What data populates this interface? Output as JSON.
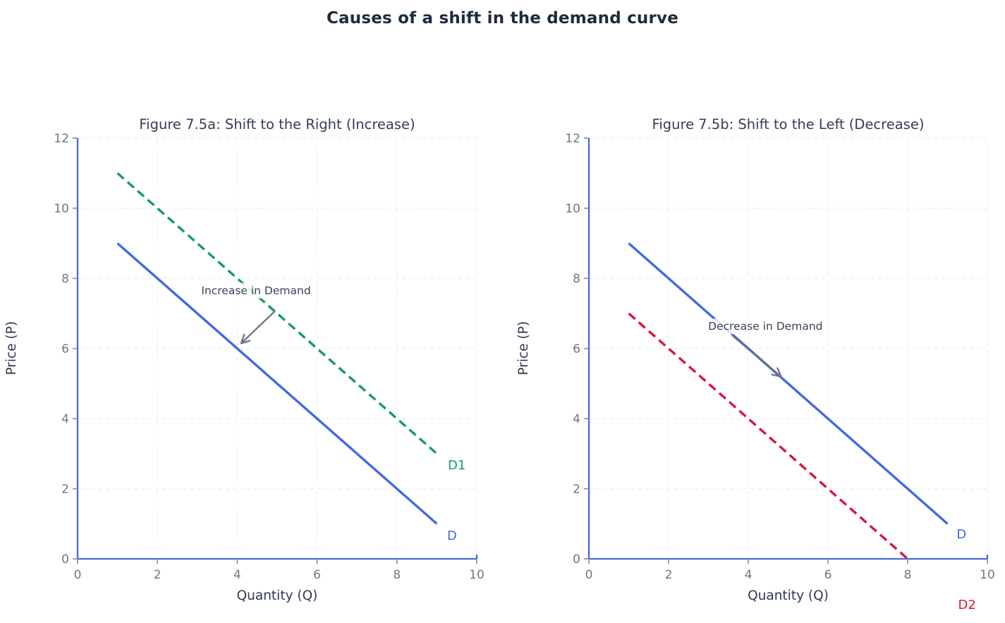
{
  "figure": {
    "title": "Causes of a shift in the demand curve",
    "background": "#ffffff"
  },
  "colors": {
    "figure_title": "#1d2b3c",
    "subplot_title": "#333e52",
    "axis_label": "#2f3a4e",
    "tick_label": "#6e7787",
    "tick_mark": "#8a93a2",
    "axis_spine": "#4169e1",
    "grid": "#e9eef4",
    "arrow": "#6b7280",
    "annotation_text": "#3a4254",
    "halo": "#ffffff"
  },
  "chart_data": [
    {
      "type": "line",
      "title": "Figure 7.5a: Shift to the Right (Increase)",
      "xlabel": "Quantity (Q)",
      "ylabel": "Price (P)",
      "xlim": [
        0,
        10
      ],
      "ylim": [
        0,
        12
      ],
      "xticks": [
        0,
        2,
        4,
        6,
        8,
        10
      ],
      "yticks": [
        0,
        2,
        4,
        6,
        8,
        10,
        12
      ],
      "grid": true,
      "series": [
        {
          "name": "D",
          "label": "D",
          "x": [
            1,
            9
          ],
          "y": [
            9,
            1
          ],
          "color": "#4169e1",
          "dash": "solid",
          "label_x": 9.38,
          "label_y": 0.66
        },
        {
          "name": "D1",
          "label": "D1",
          "x": [
            1,
            9
          ],
          "y": [
            11,
            3
          ],
          "color": "#149e5e",
          "dash": "dashed",
          "label_x": 9.5,
          "label_y": 2.67
        }
      ],
      "annotation": {
        "text": "Increase in Demand",
        "x": 4.47,
        "y": 7.65,
        "arrow": {
          "x1": 4.93,
          "y1": 7.05,
          "x2": 4.1,
          "y2": 6.15
        }
      }
    },
    {
      "type": "line",
      "title": "Figure 7.5b: Shift to the Left (Decrease)",
      "xlabel": "Quantity (Q)",
      "ylabel": "Price (P)",
      "xlim": [
        0,
        10
      ],
      "ylim": [
        0,
        12
      ],
      "xticks": [
        0,
        2,
        4,
        6,
        8,
        10
      ],
      "yticks": [
        0,
        2,
        4,
        6,
        8,
        10,
        12
      ],
      "grid": true,
      "series": [
        {
          "name": "D",
          "label": "D",
          "x": [
            1,
            9
          ],
          "y": [
            9,
            1
          ],
          "color": "#4169e1",
          "dash": "solid",
          "label_x": 9.35,
          "label_y": 0.7
        },
        {
          "name": "D2",
          "label": "D2",
          "x": [
            1,
            8
          ],
          "y": [
            7,
            0
          ],
          "color": "#dc143c",
          "dash": "dashed",
          "label_x": 9.49,
          "label_y": -1.31
        }
      ],
      "annotation": {
        "text": "Decrease in Demand",
        "x": 4.43,
        "y": 6.63,
        "arrow": {
          "x1": 3.62,
          "y1": 6.35,
          "x2": 4.82,
          "y2": 5.2
        }
      }
    }
  ]
}
